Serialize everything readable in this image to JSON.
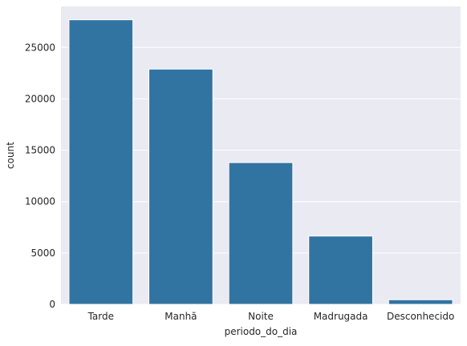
{
  "chart_data": {
    "type": "bar",
    "title": "",
    "xlabel": "periodo_do_dia",
    "ylabel": "count",
    "categories": [
      "Tarde",
      "Manhã",
      "Noite",
      "Madrugada",
      "Desconhecido"
    ],
    "values": [
      27700,
      22900,
      13800,
      6650,
      450
    ],
    "ylim": [
      0,
      29000
    ],
    "yticks": [
      0,
      5000,
      10000,
      15000,
      20000,
      25000
    ],
    "ytick_labels": [
      "0",
      "5000",
      "10000",
      "15000",
      "20000",
      "25000"
    ],
    "grid": true,
    "legend": "none",
    "colors": {
      "bar": "#3274a1",
      "plot_background": "#eaeaf2",
      "grid": "#ffffff",
      "text": "#262626"
    }
  }
}
